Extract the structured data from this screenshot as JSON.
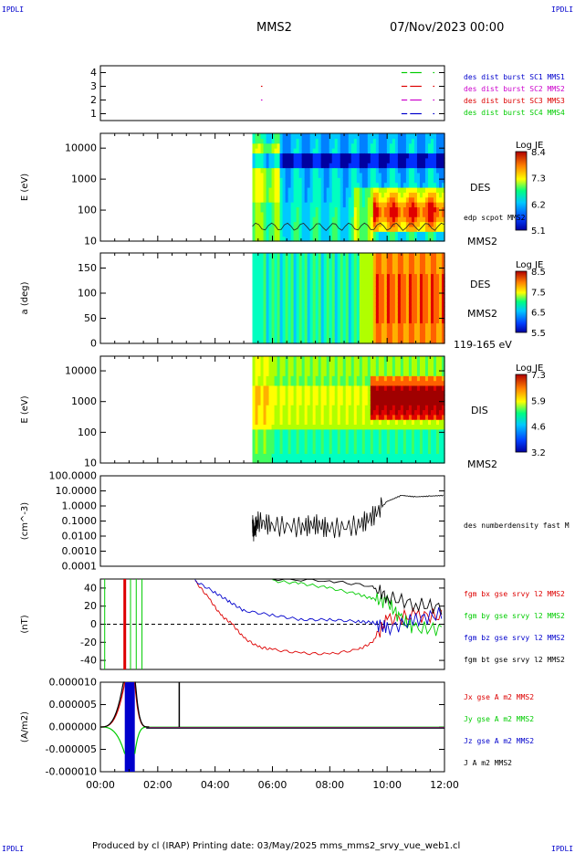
{
  "header": {
    "left_tag": "IPDLI",
    "right_tag": "IPDLI",
    "title": "MMS2",
    "date": "07/Nov/2023 00:00"
  },
  "footer": {
    "left_tag": "IPDLI",
    "right_tag": "IPDLI",
    "text": "Produced by cl (IRAP)   Printing date: 03/May/2025   mms_mms2_srvy_vue_web1.cl"
  },
  "colors": {
    "c_blue": "#0000cc",
    "c_magenta": "#cc00cc",
    "c_red": "#dd0000",
    "c_green": "#00cc00",
    "c_black": "#000000"
  },
  "chart_data": [
    {
      "type": "scatter",
      "id": "burst",
      "ylabel": "",
      "yticks": [
        "1",
        "2",
        "3",
        "4"
      ],
      "ylim": [
        0.5,
        4.5
      ],
      "legend": [
        {
          "label": "des dist burst SC1 MMS1",
          "color": "#0000cc"
        },
        {
          "label": "des dist burst SC2 MMS2",
          "color": "#cc00cc"
        },
        {
          "label": "des dist burst SC3 MMS3",
          "color": "#dd0000"
        },
        {
          "label": "des dist burst SC4 MMS4",
          "color": "#00cc00"
        }
      ],
      "segments": [
        {
          "sc": 4,
          "from": 10.5,
          "to": 10.7
        },
        {
          "sc": 4,
          "from": 10.8,
          "to": 11.2
        },
        {
          "sc": 4,
          "from": 11.6,
          "to": 11.65
        },
        {
          "sc": 3,
          "from": 5.6,
          "to": 5.65
        },
        {
          "sc": 3,
          "from": 10.5,
          "to": 10.7
        },
        {
          "sc": 3,
          "from": 10.8,
          "to": 11.2
        },
        {
          "sc": 3,
          "from": 11.6,
          "to": 11.65
        },
        {
          "sc": 2,
          "from": 5.6,
          "to": 5.65
        },
        {
          "sc": 2,
          "from": 10.5,
          "to": 10.7
        },
        {
          "sc": 2,
          "from": 10.8,
          "to": 11.2
        },
        {
          "sc": 2,
          "from": 11.6,
          "to": 11.65
        },
        {
          "sc": 1,
          "from": 10.5,
          "to": 10.7
        },
        {
          "sc": 1,
          "from": 10.8,
          "to": 11.2
        },
        {
          "sc": 1,
          "from": 11.6,
          "to": 11.65
        }
      ]
    },
    {
      "type": "heatmap",
      "id": "des_energy",
      "ylabel": "E (eV)",
      "scale": "log",
      "ylim": [
        10,
        30000
      ],
      "yticks": [
        "10",
        "100",
        "1000",
        "10000"
      ],
      "labels": [
        "DES",
        "edp scpot MMS2",
        "MMS2"
      ],
      "colorbar": {
        "title": "Log JE",
        "ticks": [
          "8.4",
          "7.3",
          "6.2",
          "5.1"
        ]
      },
      "start_h": 5.3
    },
    {
      "type": "heatmap",
      "id": "des_pitch",
      "ylabel": "a (deg)",
      "scale": "linear",
      "ylim": [
        0,
        180
      ],
      "yticks": [
        "0",
        "50",
        "100",
        "150"
      ],
      "labels": [
        "DES",
        "MMS2",
        "119-165 eV"
      ],
      "colorbar": {
        "title": "Log JE",
        "ticks": [
          "8.5",
          "7.5",
          "6.5",
          "5.5"
        ]
      },
      "start_h": 5.3
    },
    {
      "type": "heatmap",
      "id": "dis_energy",
      "ylabel": "E (eV)",
      "scale": "log",
      "ylim": [
        10,
        30000
      ],
      "yticks": [
        "10",
        "100",
        "1000",
        "10000"
      ],
      "labels": [
        "DIS",
        "MMS2"
      ],
      "colorbar": {
        "title": "Log JE",
        "ticks": [
          "7.3",
          "5.9",
          "4.6",
          "3.2"
        ]
      },
      "start_h": 5.3
    },
    {
      "type": "line",
      "id": "density",
      "ylabel": "(cm^-3)",
      "scale": "log",
      "ylim": [
        0.0001,
        100
      ],
      "yticks": [
        "0.0001",
        "0.0010",
        "0.0100",
        "0.1000",
        "1.0000",
        "10.0000",
        "100.0000"
      ],
      "legend": [
        {
          "label": "des numberdensity fast M",
          "color": "#000000"
        }
      ],
      "series": [
        {
          "x": [
            5.3,
            5.35,
            5.5,
            6.0,
            7.0,
            7.5,
            8.0,
            9.0,
            9.5,
            10.0,
            10.5,
            11.0,
            11.5,
            12.0
          ],
          "y": [
            0.07,
            0.02,
            0.1,
            0.05,
            0.04,
            0.06,
            0.03,
            0.05,
            0.2,
            2,
            5,
            4,
            4.5,
            5
          ]
        }
      ]
    },
    {
      "type": "line",
      "id": "bfield",
      "ylabel": "(nT)",
      "ylim": [
        -50,
        50
      ],
      "yticks": [
        "-40",
        "-20",
        "0",
        "20",
        "40"
      ],
      "legend": [
        {
          "label": "fgm bx gse srvy l2 MMS2",
          "color": "#dd0000"
        },
        {
          "label": "fgm by gse srvy l2 MMS2",
          "color": "#00cc00"
        },
        {
          "label": "fgm bz gse srvy l2 MMS2",
          "color": "#0000cc"
        },
        {
          "label": "fgm bt gse srvy l2 MMS2",
          "color": "#000000"
        }
      ],
      "series": [
        {
          "x": [
            3.3,
            3.8,
            4.2,
            4.6,
            5.0,
            5.5,
            6.0,
            7.0,
            8.0,
            9.0,
            9.5,
            10.0,
            11.0,
            12.0
          ],
          "y": [
            48,
            28,
            10,
            0,
            -15,
            -25,
            -28,
            -32,
            -33,
            -28,
            -20,
            5,
            10,
            8
          ]
        },
        {
          "x": [
            6.0,
            7.0,
            8.0,
            9.0,
            9.5,
            10.0,
            10.5,
            11.0,
            12.0
          ],
          "y": [
            48,
            45,
            40,
            33,
            28,
            25,
            5,
            -5,
            -5
          ]
        },
        {
          "x": [
            3.3,
            4.0,
            4.5,
            5.0,
            6.0,
            7.0,
            8.0,
            9.0,
            9.5,
            10.0,
            11.0,
            12.0
          ],
          "y": [
            48,
            35,
            25,
            15,
            10,
            5,
            5,
            3,
            2,
            -5,
            5,
            12
          ]
        },
        {
          "x": [
            6.0,
            8.0,
            9.5,
            10.0,
            11.0,
            12.0
          ],
          "y": [
            50,
            48,
            42,
            30,
            22,
            18
          ]
        }
      ]
    },
    {
      "type": "line",
      "id": "current",
      "ylabel": "(A/m2)",
      "ylim": [
        -1e-05,
        1e-05
      ],
      "yticks": [
        "-0.000010",
        "-0.000005",
        "0.000000",
        "0.000005",
        "0.000010"
      ],
      "xticks": [
        "00:00",
        "02:00",
        "04:00",
        "06:00",
        "08:00",
        "10:00",
        "12:00"
      ],
      "xlim": [
        0,
        12
      ],
      "legend": [
        {
          "label": "Jx gse A m2 MMS2",
          "color": "#dd0000"
        },
        {
          "label": "Jy gse A m2 MMS2",
          "color": "#00cc00"
        },
        {
          "label": "Jz gse A m2 MMS2",
          "color": "#0000cc"
        },
        {
          "label": "J A m2 MMS2",
          "color": "#000000"
        }
      ]
    }
  ]
}
